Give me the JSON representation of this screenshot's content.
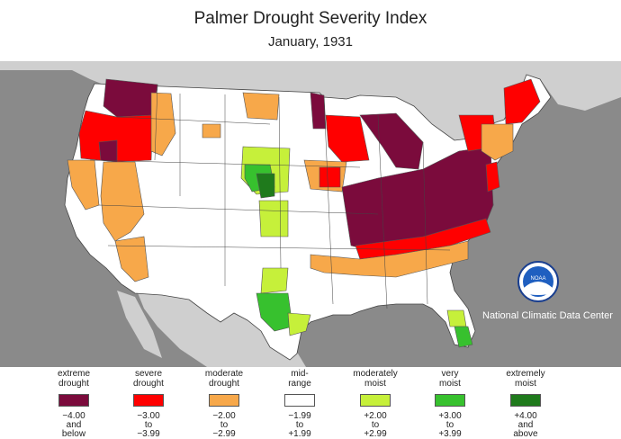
{
  "title": "Palmer Drought Severity Index",
  "subtitle": "January, 1931",
  "credit": "National Climatic Data Center",
  "logo_text": "NOAA",
  "colors": {
    "extreme_drought": "#7b0b3c",
    "severe_drought": "#ff0000",
    "moderate_drought": "#f7a84a",
    "mid_range": "#ffffff",
    "moderately_moist": "#c6f03a",
    "very_moist": "#37c12e",
    "extremely_moist": "#1f7a1c",
    "ocean": "#8a8a8a",
    "foreign_land": "#cfcfcf",
    "title_text": "#222222"
  },
  "legend": [
    {
      "line1": "extreme",
      "line2": "drought",
      "range1": "−4.00",
      "range2": "and",
      "range3": "below",
      "color": "#7b0b3c"
    },
    {
      "line1": "severe",
      "line2": "drought",
      "range1": "−3.00",
      "range2": "to",
      "range3": "−3.99",
      "color": "#ff0000"
    },
    {
      "line1": "moderate",
      "line2": "drought",
      "range1": "−2.00",
      "range2": "to",
      "range3": "−2.99",
      "color": "#f7a84a"
    },
    {
      "line1": "mid-",
      "line2": "range",
      "range1": "−1.99",
      "range2": "to",
      "range3": "+1.99",
      "color": "#ffffff"
    },
    {
      "line1": "moderately",
      "line2": "moist",
      "range1": "+2.00",
      "range2": "to",
      "range3": "+2.99",
      "color": "#c6f03a"
    },
    {
      "line1": "very",
      "line2": "moist",
      "range1": "+3.00",
      "range2": "to",
      "range3": "+3.99",
      "color": "#37c12e"
    },
    {
      "line1": "extremely",
      "line2": "moist",
      "range1": "+4.00",
      "range2": "and",
      "range3": "above",
      "color": "#1f7a1c"
    }
  ]
}
